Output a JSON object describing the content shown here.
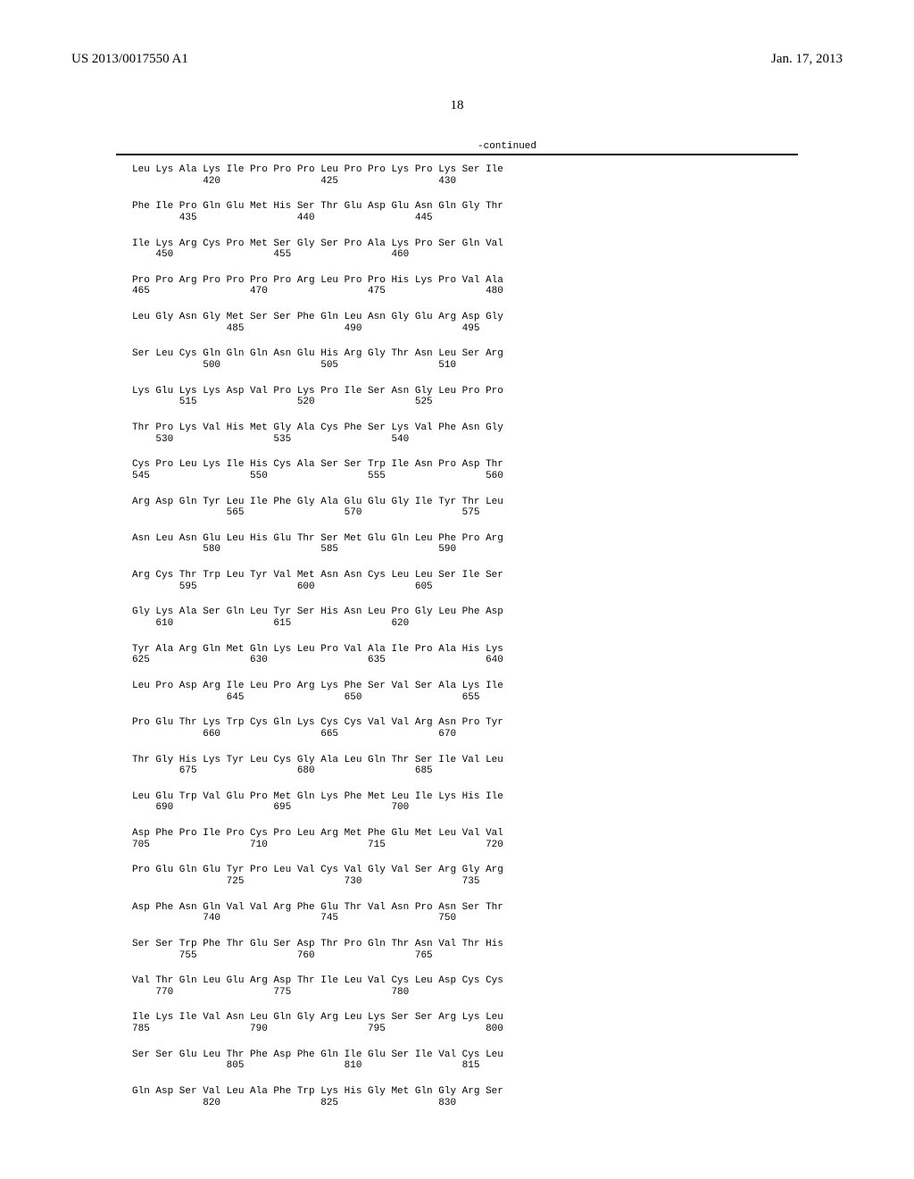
{
  "header": {
    "publication_number": "US 2013/0017550 A1",
    "publication_date": "Jan. 17, 2013"
  },
  "page_number": "18",
  "continued_label": "-continued",
  "sequence_blocks": [
    {
      "aa_line": "Leu Lys Ala Lys Ile Pro Pro Pro Leu Pro Pro Lys Pro Lys Ser Ile",
      "num_line": "            420                 425                 430"
    },
    {
      "aa_line": "Phe Ile Pro Gln Glu Met His Ser Thr Glu Asp Glu Asn Gln Gly Thr",
      "num_line": "        435                 440                 445"
    },
    {
      "aa_line": "Ile Lys Arg Cys Pro Met Ser Gly Ser Pro Ala Lys Pro Ser Gln Val",
      "num_line": "    450                 455                 460"
    },
    {
      "aa_line": "Pro Pro Arg Pro Pro Pro Pro Arg Leu Pro Pro His Lys Pro Val Ala",
      "num_line": "465                 470                 475                 480"
    },
    {
      "aa_line": "Leu Gly Asn Gly Met Ser Ser Phe Gln Leu Asn Gly Glu Arg Asp Gly",
      "num_line": "                485                 490                 495"
    },
    {
      "aa_line": "Ser Leu Cys Gln Gln Gln Asn Glu His Arg Gly Thr Asn Leu Ser Arg",
      "num_line": "            500                 505                 510"
    },
    {
      "aa_line": "Lys Glu Lys Lys Asp Val Pro Lys Pro Ile Ser Asn Gly Leu Pro Pro",
      "num_line": "        515                 520                 525"
    },
    {
      "aa_line": "Thr Pro Lys Val His Met Gly Ala Cys Phe Ser Lys Val Phe Asn Gly",
      "num_line": "    530                 535                 540"
    },
    {
      "aa_line": "Cys Pro Leu Lys Ile His Cys Ala Ser Ser Trp Ile Asn Pro Asp Thr",
      "num_line": "545                 550                 555                 560"
    },
    {
      "aa_line": "Arg Asp Gln Tyr Leu Ile Phe Gly Ala Glu Glu Gly Ile Tyr Thr Leu",
      "num_line": "                565                 570                 575"
    },
    {
      "aa_line": "Asn Leu Asn Glu Leu His Glu Thr Ser Met Glu Gln Leu Phe Pro Arg",
      "num_line": "            580                 585                 590"
    },
    {
      "aa_line": "Arg Cys Thr Trp Leu Tyr Val Met Asn Asn Cys Leu Leu Ser Ile Ser",
      "num_line": "        595                 600                 605"
    },
    {
      "aa_line": "Gly Lys Ala Ser Gln Leu Tyr Ser His Asn Leu Pro Gly Leu Phe Asp",
      "num_line": "    610                 615                 620"
    },
    {
      "aa_line": "Tyr Ala Arg Gln Met Gln Lys Leu Pro Val Ala Ile Pro Ala His Lys",
      "num_line": "625                 630                 635                 640"
    },
    {
      "aa_line": "Leu Pro Asp Arg Ile Leu Pro Arg Lys Phe Ser Val Ser Ala Lys Ile",
      "num_line": "                645                 650                 655"
    },
    {
      "aa_line": "Pro Glu Thr Lys Trp Cys Gln Lys Cys Cys Val Val Arg Asn Pro Tyr",
      "num_line": "            660                 665                 670"
    },
    {
      "aa_line": "Thr Gly His Lys Tyr Leu Cys Gly Ala Leu Gln Thr Ser Ile Val Leu",
      "num_line": "        675                 680                 685"
    },
    {
      "aa_line": "Leu Glu Trp Val Glu Pro Met Gln Lys Phe Met Leu Ile Lys His Ile",
      "num_line": "    690                 695                 700"
    },
    {
      "aa_line": "Asp Phe Pro Ile Pro Cys Pro Leu Arg Met Phe Glu Met Leu Val Val",
      "num_line": "705                 710                 715                 720"
    },
    {
      "aa_line": "Pro Glu Gln Glu Tyr Pro Leu Val Cys Val Gly Val Ser Arg Gly Arg",
      "num_line": "                725                 730                 735"
    },
    {
      "aa_line": "Asp Phe Asn Gln Val Val Arg Phe Glu Thr Val Asn Pro Asn Ser Thr",
      "num_line": "            740                 745                 750"
    },
    {
      "aa_line": "Ser Ser Trp Phe Thr Glu Ser Asp Thr Pro Gln Thr Asn Val Thr His",
      "num_line": "        755                 760                 765"
    },
    {
      "aa_line": "Val Thr Gln Leu Glu Arg Asp Thr Ile Leu Val Cys Leu Asp Cys Cys",
      "num_line": "    770                 775                 780"
    },
    {
      "aa_line": "Ile Lys Ile Val Asn Leu Gln Gly Arg Leu Lys Ser Ser Arg Lys Leu",
      "num_line": "785                 790                 795                 800"
    },
    {
      "aa_line": "Ser Ser Glu Leu Thr Phe Asp Phe Gln Ile Glu Ser Ile Val Cys Leu",
      "num_line": "                805                 810                 815"
    },
    {
      "aa_line": "Gln Asp Ser Val Leu Ala Phe Trp Lys His Gly Met Gln Gly Arg Ser",
      "num_line": "            820                 825                 830"
    }
  ]
}
